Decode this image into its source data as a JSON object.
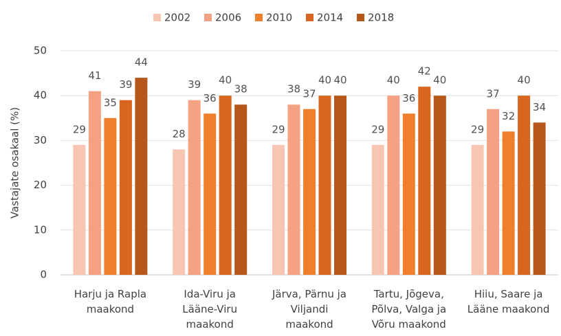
{
  "chart_data": {
    "type": "bar",
    "y_label": "Vastajate osakaal (%)",
    "categories": [
      "Harju ja Rapla\nmaakond",
      "Ida-Viru ja\nLääne-Viru\nmaakond",
      "Järva, Pärnu ja\nViljandi\nmaakond",
      "Tartu, Jõgeva,\nPõlva, Valga ja\nVõru maakond",
      "Hiiu, Saare ja\nLääne maakond"
    ],
    "series": [
      {
        "name": "2002",
        "color": "#f8c5b2",
        "values": [
          29,
          28,
          29,
          29,
          29
        ]
      },
      {
        "name": "2006",
        "color": "#f4a283",
        "values": [
          41,
          39,
          38,
          40,
          37
        ]
      },
      {
        "name": "2010",
        "color": "#f07f2c",
        "values": [
          35,
          36,
          37,
          36,
          32
        ]
      },
      {
        "name": "2014",
        "color": "#d9661e",
        "values": [
          39,
          40,
          40,
          42,
          40
        ]
      },
      {
        "name": "2018",
        "color": "#b5561b",
        "values": [
          44,
          38,
          40,
          40,
          34
        ]
      }
    ],
    "ylim": [
      0,
      50
    ],
    "yticks": [
      0,
      10,
      20,
      30,
      40,
      50
    ],
    "grid": true,
    "legend": "top"
  }
}
